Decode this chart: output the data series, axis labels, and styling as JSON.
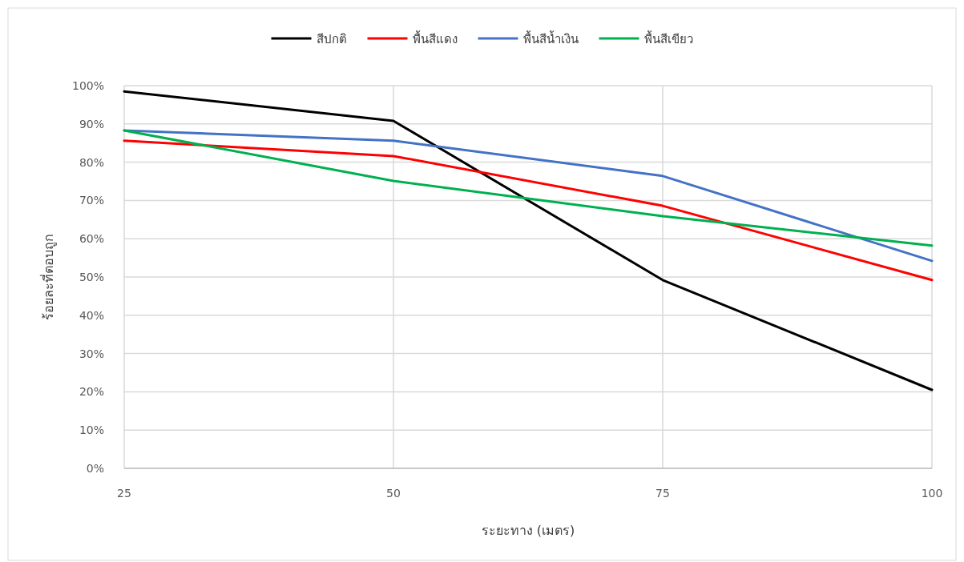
{
  "chart_data": {
    "type": "line",
    "xlabel": "ระยะทาง (เมตร)",
    "ylabel": "ร้อยละที่ตอบถูก",
    "x": [
      25,
      50,
      75,
      100
    ],
    "xlim": [
      25,
      100
    ],
    "xticks": [
      25,
      50,
      75,
      100
    ],
    "ylim": [
      0,
      100
    ],
    "yticks": [
      {
        "value": 0,
        "label": "0%"
      },
      {
        "value": 10,
        "label": "10%"
      },
      {
        "value": 20,
        "label": "20%"
      },
      {
        "value": 30,
        "label": "30%"
      },
      {
        "value": 40,
        "label": "40%"
      },
      {
        "value": 50,
        "label": "50%"
      },
      {
        "value": 60,
        "label": "60%"
      },
      {
        "value": 70,
        "label": "70%"
      },
      {
        "value": 80,
        "label": "80%"
      },
      {
        "value": 90,
        "label": "90%"
      },
      {
        "value": 100,
        "label": "100%"
      }
    ],
    "grid": true,
    "legend": "top",
    "marker": "none",
    "line_style": "solid",
    "series": [
      {
        "name": "สีปกติ",
        "color": "#000000",
        "values": [
          98.5,
          90.8,
          49.2,
          20.5
        ]
      },
      {
        "name": "พื้นสีแดง",
        "color": "#ff0000",
        "values": [
          85.6,
          81.6,
          68.6,
          49.2
        ]
      },
      {
        "name": "พื้นสีน้ำเงิน",
        "color": "#4472c4",
        "values": [
          88.3,
          85.6,
          76.4,
          54.2
        ]
      },
      {
        "name": "พื้นสีเขียว",
        "color": "#00b050",
        "values": [
          88.3,
          75.1,
          65.9,
          58.2
        ]
      }
    ]
  }
}
